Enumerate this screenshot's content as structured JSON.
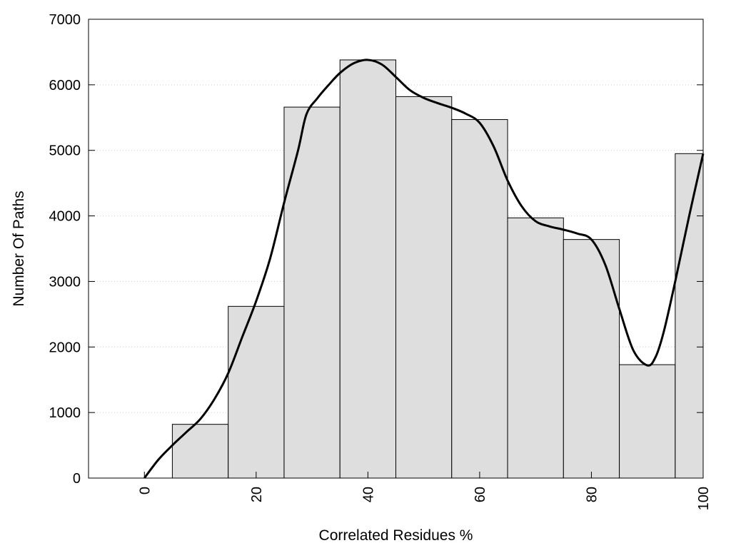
{
  "chart_data": {
    "type": "bar",
    "title": "",
    "xlabel": "Correlated Residues %",
    "ylabel": "Number Of Paths",
    "xlim": [
      -10,
      100
    ],
    "ylim": [
      0,
      7000
    ],
    "xticks": [
      0,
      20,
      40,
      60,
      80,
      100
    ],
    "yticks": [
      0,
      1000,
      2000,
      3000,
      4000,
      5000,
      6000,
      7000
    ],
    "grid": "horizontal dotted",
    "bin_width": 10,
    "bars": [
      {
        "x": 0,
        "value": 0
      },
      {
        "x": 10,
        "value": 820
      },
      {
        "x": 20,
        "value": 2620
      },
      {
        "x": 30,
        "value": 5660
      },
      {
        "x": 40,
        "value": 6380
      },
      {
        "x": 50,
        "value": 5820
      },
      {
        "x": 60,
        "value": 5470
      },
      {
        "x": 70,
        "value": 3970
      },
      {
        "x": 80,
        "value": 3640
      },
      {
        "x": 90,
        "value": 1730
      },
      {
        "x": 100,
        "value": 4950
      }
    ],
    "curve": [
      [
        0,
        0
      ],
      [
        2.5,
        280
      ],
      [
        5,
        500
      ],
      [
        7.5,
        700
      ],
      [
        10,
        900
      ],
      [
        12.5,
        1200
      ],
      [
        15,
        1600
      ],
      [
        17.5,
        2150
      ],
      [
        20,
        2700
      ],
      [
        22.5,
        3350
      ],
      [
        25,
        4200
      ],
      [
        27.5,
        5000
      ],
      [
        29,
        5550
      ],
      [
        31,
        5800
      ],
      [
        33,
        6000
      ],
      [
        35,
        6180
      ],
      [
        37.5,
        6330
      ],
      [
        40,
        6380
      ],
      [
        42.5,
        6310
      ],
      [
        45,
        6120
      ],
      [
        47.5,
        5920
      ],
      [
        50,
        5800
      ],
      [
        52.5,
        5720
      ],
      [
        55,
        5650
      ],
      [
        57.5,
        5560
      ],
      [
        60,
        5420
      ],
      [
        62.5,
        5060
      ],
      [
        65,
        4540
      ],
      [
        67.5,
        4150
      ],
      [
        70,
        3920
      ],
      [
        72.5,
        3840
      ],
      [
        75,
        3790
      ],
      [
        77.5,
        3730
      ],
      [
        80,
        3640
      ],
      [
        82.5,
        3250
      ],
      [
        85,
        2580
      ],
      [
        87.5,
        1950
      ],
      [
        90,
        1720
      ],
      [
        91.5,
        1850
      ],
      [
        93,
        2250
      ],
      [
        95,
        3000
      ],
      [
        97.5,
        4000
      ],
      [
        100,
        4950
      ]
    ],
    "colors": {
      "bar_fill": "#dedede",
      "bar_stroke": "#000000",
      "curve": "#000000",
      "grid": "#cfcfcf"
    }
  }
}
